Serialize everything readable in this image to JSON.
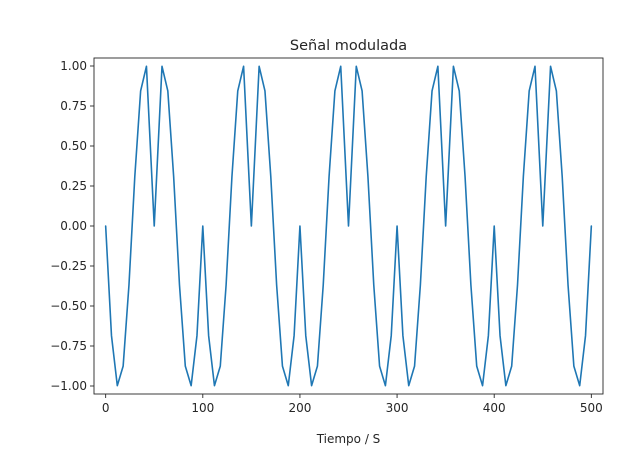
{
  "chart_data": {
    "type": "line",
    "title": "Señal modulada",
    "xlabel": "Tiempo / S",
    "ylabel": "",
    "xlim": [
      -12,
      512
    ],
    "ylim": [
      -1.05,
      1.05
    ],
    "grid": false,
    "xticks": [
      0,
      100,
      200,
      300,
      400,
      500
    ],
    "xtick_labels": [
      "0",
      "100",
      "200",
      "300",
      "400",
      "500"
    ],
    "yticks": [
      -1.0,
      -0.75,
      -0.5,
      -0.25,
      0.0,
      0.25,
      0.5,
      0.75,
      1.0
    ],
    "ytick_labels": [
      "−1.00",
      "−0.75",
      "−0.50",
      "−0.25",
      "0.00",
      "0.25",
      "0.50",
      "0.75",
      "1.00"
    ],
    "series": [
      {
        "color": "#1f77b4",
        "x": [
          0,
          6,
          12,
          18,
          24,
          30,
          36,
          42,
          48,
          50,
          52,
          58,
          64,
          70,
          76,
          82,
          88,
          94,
          100,
          106,
          112,
          118,
          124,
          130,
          136,
          142,
          148,
          150,
          152,
          158,
          164,
          170,
          176,
          182,
          188,
          194,
          200,
          206,
          212,
          218,
          224,
          230,
          236,
          242,
          248,
          250,
          252,
          258,
          264,
          270,
          276,
          282,
          288,
          294,
          300,
          306,
          312,
          318,
          324,
          330,
          336,
          342,
          348,
          350,
          352,
          358,
          364,
          370,
          376,
          382,
          388,
          394,
          400,
          406,
          412,
          418,
          424,
          430,
          436,
          442,
          448,
          450,
          452,
          458,
          464,
          470,
          476,
          482,
          488,
          494,
          500
        ],
        "y": [
          0.0,
          -0.685,
          -0.998,
          -0.876,
          -0.368,
          0.309,
          0.844,
          0.998,
          0.249,
          0.0,
          0.249,
          0.998,
          0.844,
          0.309,
          -0.368,
          -0.876,
          -0.998,
          -0.685,
          0.0,
          -0.685,
          -0.998,
          -0.876,
          -0.368,
          0.309,
          0.844,
          0.998,
          0.249,
          0.0,
          0.249,
          0.998,
          0.844,
          0.309,
          -0.368,
          -0.876,
          -0.998,
          -0.685,
          0.0,
          -0.685,
          -0.998,
          -0.876,
          -0.368,
          0.309,
          0.844,
          0.998,
          0.249,
          0.0,
          0.249,
          0.998,
          0.844,
          0.309,
          -0.368,
          -0.876,
          -0.998,
          -0.685,
          0.0,
          -0.685,
          -0.998,
          -0.876,
          -0.368,
          0.309,
          0.844,
          0.998,
          0.249,
          0.0,
          0.249,
          0.998,
          0.844,
          0.309,
          -0.368,
          -0.876,
          -0.998,
          -0.685,
          0.0,
          -0.685,
          -0.998,
          -0.876,
          -0.368,
          0.309,
          0.844,
          0.998,
          0.249,
          0.0,
          0.249,
          0.998,
          0.844,
          0.309,
          -0.368,
          -0.876,
          -0.998,
          -0.685,
          0.0
        ]
      }
    ]
  }
}
